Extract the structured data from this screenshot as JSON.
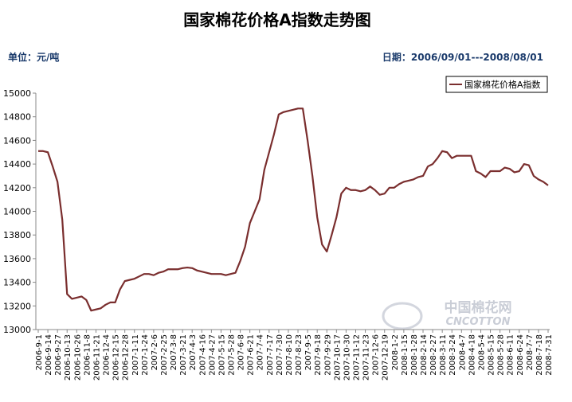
{
  "chart_data": {
    "type": "line",
    "title": "国家棉花价格A指数走势图",
    "unit_label": "单位：元/吨",
    "date_range": "日期：2006/09/01---2008/08/01",
    "watermark": "中国棉花网",
    "watermark_sub": "CNCOTTON",
    "categories": [
      "2006-9-1",
      null,
      "2006-9-14",
      null,
      "2006-9-27",
      null,
      "2006-10-13",
      null,
      "2006-10-26",
      null,
      "2006-11-8",
      null,
      "2006-11-21",
      null,
      "2006-12-4",
      null,
      "2006-12-15",
      null,
      "2006-12-28",
      null,
      "2007-1-11",
      null,
      "2007-1-24",
      null,
      "2007-2-6",
      null,
      "2007-2-25",
      null,
      "2007-3-8",
      null,
      "2007-3-21",
      null,
      "2007-4-3",
      null,
      "2007-4-16",
      null,
      "2007-4-27",
      null,
      "2007-5-15",
      null,
      "2007-5-28",
      null,
      "2007-6-8",
      null,
      "2007-6-21",
      null,
      "2007-7-4",
      null,
      "2007-7-17",
      null,
      "2007-7-30",
      null,
      "2007-8-10",
      null,
      "2007-8-23",
      null,
      "2007-9-5",
      null,
      "2007-9-18",
      null,
      "2007-9-29",
      null,
      "2007-10-17",
      null,
      "2007-10-30",
      null,
      "2007-11-12",
      null,
      "2007-11-23",
      null,
      "2007-12-6",
      null,
      "2007-12-19",
      null,
      "2008-1-2",
      null,
      "2008-1-15",
      null,
      "2008-1-28",
      null,
      "2008-2-14",
      null,
      "2008-2-27",
      null,
      "2008-3-11",
      null,
      "2008-3-24",
      null,
      "2008-4-7",
      null,
      "2008-4-18",
      null,
      "2008-5-4",
      null,
      "2008-5-15",
      null,
      "2008-5-28",
      null,
      "2008-6-11",
      null,
      "2008-6-24",
      null,
      "2008-7-7",
      null,
      "2008-7-18",
      null,
      "2008-7-31"
    ],
    "series": [
      {
        "name": "国家棉花价格A指数",
        "color": "#7a2e2e",
        "values": [
          14510,
          14510,
          14500,
          14380,
          14250,
          13930,
          13300,
          13260,
          13270,
          13280,
          13250,
          13160,
          13170,
          13180,
          13210,
          13230,
          13230,
          13340,
          13410,
          13420,
          13430,
          13450,
          13470,
          13470,
          13460,
          13480,
          13490,
          13510,
          13510,
          13510,
          13520,
          13525,
          13520,
          13500,
          13490,
          13480,
          13470,
          13470,
          13470,
          13460,
          13470,
          13480,
          13580,
          13700,
          13900,
          14000,
          14100,
          14350,
          14500,
          14650,
          14820,
          14840,
          14850,
          14860,
          14870,
          14870,
          14600,
          14300,
          13950,
          13720,
          13660,
          13800,
          13950,
          14150,
          14200,
          14180,
          14180,
          14170,
          14180,
          14210,
          14180,
          14140,
          14150,
          14200,
          14200,
          14230,
          14250,
          14260,
          14270,
          14290,
          14300,
          14380,
          14400,
          14450,
          14510,
          14500,
          14450,
          14470,
          14470,
          14470,
          14470,
          14340,
          14320,
          14290,
          14340,
          14340,
          14340,
          14370,
          14360,
          14330,
          14340,
          14400,
          14390,
          14300,
          14270,
          14250,
          14220
        ]
      }
    ],
    "ylim": [
      13000,
      15000
    ],
    "yticks": [
      13000,
      13200,
      13400,
      13600,
      13800,
      14000,
      14200,
      14400,
      14600,
      14800,
      15000
    ],
    "grid": false,
    "legend": "top-right"
  }
}
